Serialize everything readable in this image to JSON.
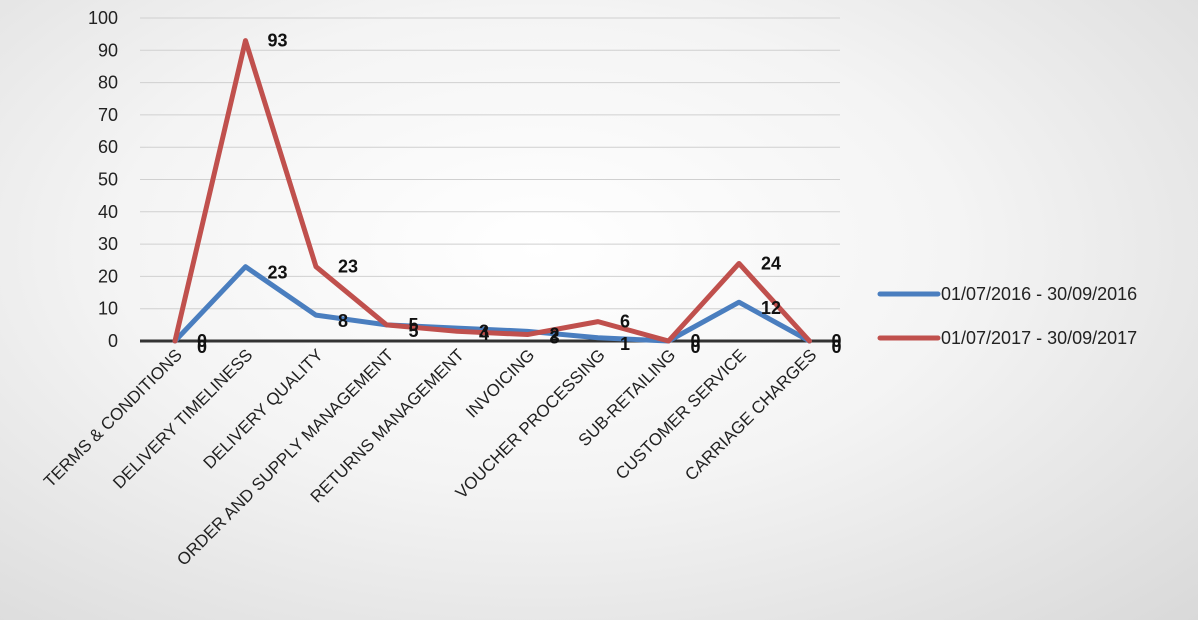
{
  "chart_data": {
    "type": "line",
    "categories": [
      "TERMS & CONDITIONS",
      "DELIVERY TIMELINESS",
      "DELIVERY QUALITY",
      "ORDER AND SUPPLY MANAGEMENT",
      "RETURNS MANAGEMENT",
      "INVOICING",
      "VOUCHER PROCESSING",
      "SUB-RETAILING",
      "CUSTOMER SERVICE",
      "CARRIAGE CHARGES"
    ],
    "series": [
      {
        "name": "01/07/2016 - 30/09/2016",
        "color": "#4a7ebf",
        "values": [
          0,
          23,
          8,
          5,
          4,
          3,
          1,
          0,
          12,
          0
        ]
      },
      {
        "name": "01/07/2017 - 30/09/2017",
        "color": "#c0504d",
        "values": [
          0,
          93,
          23,
          5,
          3,
          2,
          6,
          0,
          24,
          0
        ]
      }
    ],
    "ylim": [
      0,
      100
    ],
    "yticks": [
      "0",
      "10",
      "20",
      "30",
      "40",
      "50",
      "60",
      "70",
      "80",
      "90",
      "100"
    ],
    "grid": true,
    "legend_position": "right"
  }
}
